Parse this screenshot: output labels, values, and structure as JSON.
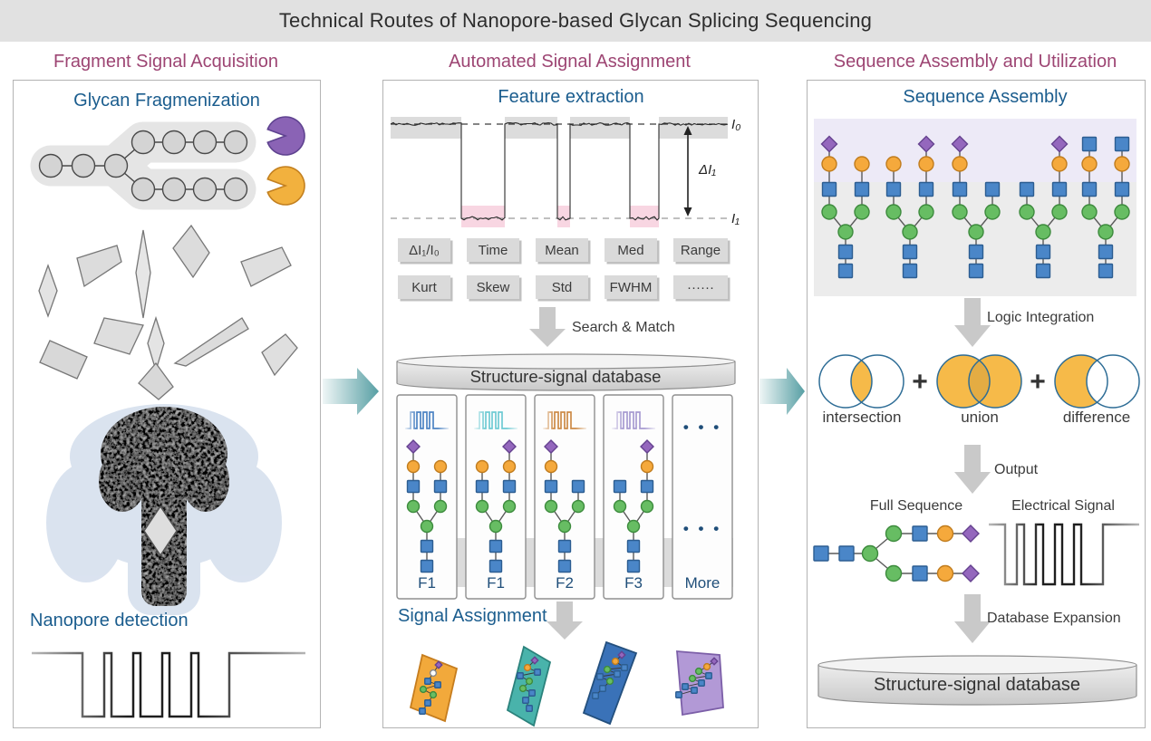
{
  "title": "Technical Routes of Nanopore-based Glycan Splicing Sequencing",
  "column_headers": [
    "Fragment Signal Acquisition",
    "Automated Signal Assignment",
    "Sequence Assembly and Utilization"
  ],
  "left_panel": {
    "glycan_title": "Glycan Fragmenization",
    "nanopore_title": "Nanopore detection",
    "glycan": {
      "stem_units": 3,
      "upper_branch_units": 4,
      "lower_branch_units": 4
    },
    "enzymes": [
      {
        "name": "enzyme-pacman-purple",
        "color": "#8a63b5"
      },
      {
        "name": "enzyme-pacman-orange",
        "color": "#f2b13e"
      }
    ]
  },
  "middle_panel": {
    "feature_title": "Feature extraction",
    "trace": {
      "baseline_label": "I₀",
      "blockade_label": "I₁",
      "delta_label": "ΔI₁"
    },
    "feature_chips": [
      [
        "ΔI₁/I₀",
        "Time",
        "Mean",
        "Med",
        "Range"
      ],
      [
        "Kurt",
        "Skew",
        "Std",
        "FWHM",
        "······"
      ]
    ],
    "search_match_label": "Search & Match",
    "database_label": "Structure-signal database",
    "cards": [
      {
        "label": "F1",
        "wave_color": "#4d84c4",
        "left": [
          "purple-diamond",
          "orange-circle",
          "blue-square",
          "green-circle"
        ],
        "right": [
          "orange-circle",
          "blue-square",
          "green-circle"
        ]
      },
      {
        "label": "F1",
        "wave_color": "#6fcbd4",
        "left": [
          "orange-circle",
          "blue-square",
          "green-circle"
        ],
        "right": [
          "purple-diamond",
          "orange-circle",
          "blue-square",
          "green-circle"
        ]
      },
      {
        "label": "F2",
        "wave_color": "#cd8b47",
        "left": [
          "purple-diamond",
          "orange-circle",
          "blue-square",
          "green-circle"
        ],
        "right": [
          "blue-square",
          "green-circle"
        ]
      },
      {
        "label": "F3",
        "wave_color": "#a79bd1",
        "left": [
          "blue-square",
          "green-circle"
        ],
        "right": [
          "purple-diamond",
          "orange-circle",
          "blue-square",
          "green-circle"
        ]
      },
      {
        "label": "More",
        "dots": "• • •"
      }
    ],
    "assignment_title": "Signal Assignment",
    "fragments": [
      {
        "name": "fragment-orange",
        "color": "#f2a93b"
      },
      {
        "name": "fragment-teal",
        "color": "#49b3ab"
      },
      {
        "name": "fragment-blue",
        "color": "#3a72b8"
      },
      {
        "name": "fragment-purple",
        "color": "#b299d6"
      }
    ]
  },
  "right_panel": {
    "assembly_title": "Sequence Assembly",
    "assembly_trees": [
      {
        "left": [
          "purple-diamond",
          "orange-circle",
          "blue-square",
          "green-circle"
        ],
        "right": [
          "orange-circle",
          "blue-square",
          "green-circle"
        ]
      },
      {
        "left": [
          "orange-circle",
          "blue-square",
          "green-circle"
        ],
        "right": [
          "purple-diamond",
          "orange-circle",
          "blue-square",
          "green-circle"
        ]
      },
      {
        "left": [
          "purple-diamond",
          "orange-circle",
          "blue-square",
          "green-circle"
        ],
        "right": [
          "blue-square",
          "green-circle"
        ]
      },
      {
        "left": [
          "blue-square",
          "green-circle"
        ],
        "right": [
          "purple-diamond",
          "orange-circle",
          "blue-square",
          "green-circle"
        ]
      },
      {
        "left": [
          "blue-square",
          "orange-circle",
          "blue-square",
          "green-circle"
        ],
        "right": [
          "blue-square",
          "orange-circle",
          "blue-square",
          "green-circle"
        ]
      }
    ],
    "logic_label": "Logic Integration",
    "venn": {
      "labels": [
        "intersection",
        "union",
        "difference"
      ],
      "plus_sign": "+",
      "fill": "#f6ba49"
    },
    "output_label": "Output",
    "full_sequence_label": "Full Sequence",
    "electrical_signal_label": "Electrical Signal",
    "full_sequence": {
      "stem": [
        "blue-square",
        "blue-square",
        "green-circle"
      ],
      "branch": [
        "green-circle",
        "blue-square",
        "orange-circle",
        "purple-diamond"
      ]
    },
    "expansion_label": "Database Expansion",
    "database_label": "Structure-signal database"
  },
  "palette": {
    "header": "#9d4573",
    "section_title": "#1b5d8e",
    "navy": "#1f4e79",
    "blue_square": "#4a86c8",
    "green_circle": "#67bd63",
    "orange_circle": "#f5a93c",
    "purple_diamond": "#9467bd",
    "arrow_teal": "#579fa4",
    "arrow_gray": "#c9c9c9",
    "pink_highlight": "#f8d6e2",
    "lavender_band": "#edeaf7",
    "gray_band": "#ececec"
  }
}
